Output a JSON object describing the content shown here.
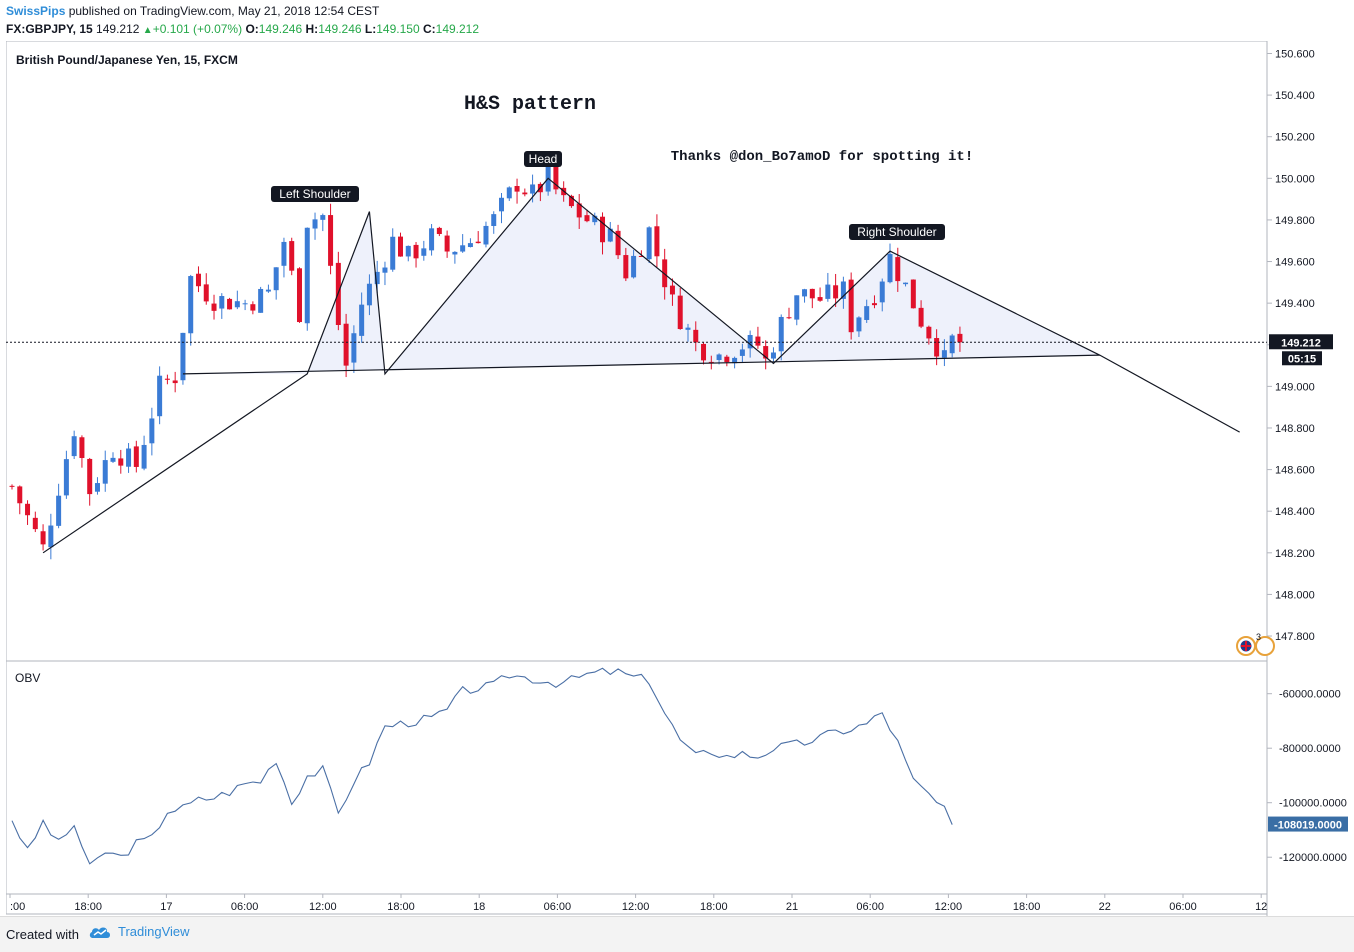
{
  "header": {
    "author": "SwissPips",
    "published_text": " published on TradingView.com, May 21, 2018 12:54 CEST",
    "symbol": "FX:GBPJPY, 15",
    "last": "149.212",
    "change": "+0.101 (+0.07%)",
    "o_label": "O:",
    "o_value": "149.246",
    "h_label": "H:",
    "h_value": "149.246",
    "l_label": "L:",
    "l_value": "149.150",
    "c_label": "C:",
    "c_value": "149.212"
  },
  "footer": {
    "created_with": "Created with",
    "brand": "TradingView"
  },
  "colors": {
    "bull": "#3a7bd5",
    "bear": "#e0112b",
    "obv_line": "#4a6fa5",
    "price_tag": "#131722",
    "obv_tag": "#3a6ea5",
    "pattern_fill": "#eef1fb"
  },
  "chart_data": [
    {
      "type": "candlestick",
      "title": "British Pound/Japanese Yen, 15, FXCM",
      "yaxis_ticks": [
        "150.600",
        "150.400",
        "150.200",
        "150.000",
        "149.800",
        "149.600",
        "149.400",
        "149.200",
        "149.000",
        "148.800",
        "148.600",
        "148.400",
        "148.200",
        "148.000",
        "147.800"
      ],
      "ylim": [
        147.68,
        150.66
      ],
      "xaxis_ticks": [
        ":00",
        "18:00",
        "17",
        "06:00",
        "12:00",
        "18:00",
        "18",
        "06:00",
        "12:00",
        "18:00",
        "21",
        "06:00",
        "12:00",
        "18:00",
        "22",
        "06:00",
        "12"
      ],
      "last_price_label": "149.212",
      "countdown_label": "05:15",
      "last_price": 149.212,
      "annotations": {
        "title": "H&S pattern",
        "thanks": "Thanks @don_Bo7amoD for spotting it!",
        "left_shoulder": "Left Shoulder",
        "head": "Head",
        "right_shoulder": "Right Shoulder"
      },
      "pattern_points": [
        {
          "t": 4,
          "p": 148.2
        },
        {
          "t": 38,
          "p": 149.06
        },
        {
          "t": 46,
          "p": 149.84
        },
        {
          "t": 48,
          "p": 149.06
        },
        {
          "t": 69,
          "p": 150.0
        },
        {
          "t": 98,
          "p": 149.11
        },
        {
          "t": 113,
          "p": 149.65
        },
        {
          "t": 140,
          "p": 149.15
        },
        {
          "t": 158,
          "p": 148.78
        }
      ],
      "neckline": [
        {
          "t": 22,
          "p": 149.06
        },
        {
          "t": 140,
          "p": 149.15
        }
      ],
      "key_points": [
        [
          0,
          148.52
        ],
        [
          4,
          148.22
        ],
        [
          6,
          148.52
        ],
        [
          8,
          148.8
        ],
        [
          10,
          148.5
        ],
        [
          13,
          148.7
        ],
        [
          16,
          148.62
        ],
        [
          19,
          149.0
        ],
        [
          21,
          149.05
        ],
        [
          23,
          149.52
        ],
        [
          26,
          149.42
        ],
        [
          30,
          149.4
        ],
        [
          33,
          149.45
        ],
        [
          35,
          149.7
        ],
        [
          37,
          149.36
        ],
        [
          38,
          149.8
        ],
        [
          40,
          149.82
        ],
        [
          42,
          149.3
        ],
        [
          43,
          149.1
        ],
        [
          45,
          149.4
        ],
        [
          47,
          149.55
        ],
        [
          49,
          149.7
        ],
        [
          51,
          149.62
        ],
        [
          54,
          149.72
        ],
        [
          56,
          149.65
        ],
        [
          59,
          149.7
        ],
        [
          62,
          149.8
        ],
        [
          65,
          149.98
        ],
        [
          67,
          149.92
        ],
        [
          69,
          150.0
        ],
        [
          71,
          149.88
        ],
        [
          74,
          149.8
        ],
        [
          77,
          149.72
        ],
        [
          79,
          149.55
        ],
        [
          82,
          149.75
        ],
        [
          85,
          149.4
        ],
        [
          88,
          149.2
        ],
        [
          91,
          149.15
        ],
        [
          94,
          149.2
        ],
        [
          96,
          149.2
        ],
        [
          97,
          149.12
        ],
        [
          99,
          149.3
        ],
        [
          101,
          149.45
        ],
        [
          104,
          149.42
        ],
        [
          107,
          149.46
        ],
        [
          108,
          149.3
        ],
        [
          111,
          149.45
        ],
        [
          113,
          149.62
        ],
        [
          115,
          149.48
        ],
        [
          117,
          149.32
        ],
        [
          119,
          149.2
        ],
        [
          120,
          149.12
        ],
        [
          121,
          149.22
        ]
      ]
    },
    {
      "type": "line",
      "title": "OBV",
      "yaxis_ticks": [
        "-60000.0000",
        "-80000.0000",
        "-100000.0000",
        "-120000.0000"
      ],
      "ylim": [
        -133500,
        -48000
      ],
      "last_value_label": "-108019.0000",
      "key_points": [
        [
          0,
          -106000
        ],
        [
          2,
          -118000
        ],
        [
          4,
          -107000
        ],
        [
          6,
          -115000
        ],
        [
          8,
          -108000
        ],
        [
          10,
          -124000
        ],
        [
          12,
          -118000
        ],
        [
          14,
          -120000
        ],
        [
          16,
          -115000
        ],
        [
          18,
          -113000
        ],
        [
          20,
          -103000
        ],
        [
          22,
          -102000
        ],
        [
          24,
          -99000
        ],
        [
          26,
          -98000
        ],
        [
          28,
          -96000
        ],
        [
          30,
          -93000
        ],
        [
          32,
          -92000
        ],
        [
          34,
          -84000
        ],
        [
          36,
          -100000
        ],
        [
          38,
          -90000
        ],
        [
          40,
          -88000
        ],
        [
          42,
          -104000
        ],
        [
          44,
          -92000
        ],
        [
          46,
          -85000
        ],
        [
          48,
          -72000
        ],
        [
          50,
          -71000
        ],
        [
          52,
          -70000
        ],
        [
          54,
          -69000
        ],
        [
          56,
          -66000
        ],
        [
          58,
          -59000
        ],
        [
          60,
          -58000
        ],
        [
          62,
          -57000
        ],
        [
          64,
          -53000
        ],
        [
          66,
          -54000
        ],
        [
          68,
          -55000
        ],
        [
          70,
          -56000
        ],
        [
          72,
          -55000
        ],
        [
          74,
          -53000
        ],
        [
          76,
          -52000
        ],
        [
          78,
          -52000
        ],
        [
          80,
          -54000
        ],
        [
          82,
          -55000
        ],
        [
          84,
          -67000
        ],
        [
          86,
          -77000
        ],
        [
          88,
          -83000
        ],
        [
          90,
          -81000
        ],
        [
          92,
          -83000
        ],
        [
          94,
          -82000
        ],
        [
          96,
          -83000
        ],
        [
          98,
          -80000
        ],
        [
          100,
          -79000
        ],
        [
          102,
          -78000
        ],
        [
          104,
          -76000
        ],
        [
          106,
          -74000
        ],
        [
          108,
          -73000
        ],
        [
          110,
          -71000
        ],
        [
          112,
          -67000
        ],
        [
          114,
          -78000
        ],
        [
          116,
          -92000
        ],
        [
          118,
          -97000
        ],
        [
          120,
          -103000
        ],
        [
          121,
          -108019
        ]
      ]
    }
  ]
}
